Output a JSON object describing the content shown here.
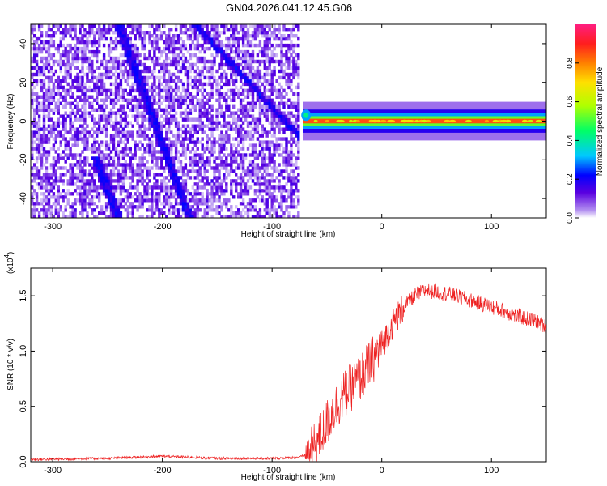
{
  "title": "GN04.2026.041.12.45.G06",
  "chart_data": [
    {
      "type": "heatmap",
      "name": "spectrogram",
      "xlabel": "Height of straight line (km)",
      "ylabel": "Frequency (Hz)",
      "xlim": [
        -320,
        150
      ],
      "ylim": [
        -50,
        50
      ],
      "xticks": [
        -300,
        -200,
        -100,
        0,
        100
      ],
      "yticks": [
        -40,
        -20,
        0,
        20,
        40
      ],
      "colorbar": {
        "label": "Normalized spectral amplitude",
        "range": [
          0.0,
          1.0
        ],
        "ticks": [
          "0.0",
          "0.2",
          "0.4",
          "0.6",
          "0.8"
        ],
        "tick_values": [
          0.0,
          0.2,
          0.4,
          0.6,
          0.8
        ],
        "colormap": [
          "#ffffff",
          "#b28ff0",
          "#5a00e0",
          "#0000ff",
          "#00c8ff",
          "#00ff66",
          "#b0ff00",
          "#ffe000",
          "#ff8000",
          "#ff1e1e",
          "#ff1e80"
        ]
      },
      "features": {
        "noise_region_end_km": -75,
        "carrier_freq_hz": 0,
        "carrier_start_km": -72,
        "diagonal_tracks": [
          {
            "start": [
              -240,
              50
            ],
            "end": [
              -175,
              -50
            ]
          },
          {
            "start": [
              -170,
              50
            ],
            "end": [
              -75,
              -8
            ]
          },
          {
            "start": [
              -260,
              -20
            ],
            "end": [
              -240,
              -50
            ]
          }
        ]
      }
    },
    {
      "type": "line",
      "name": "snr",
      "xlabel": "Height of straight line (km)",
      "ylabel": "SNR (10 * v/v)",
      "y_multiplier": "(x10",
      "y_multiplier_exp": "4",
      "multiplier_close": ")",
      "xlim": [
        -320,
        150
      ],
      "ylim": [
        0.0,
        1.75
      ],
      "xticks": [
        -300,
        -200,
        -100,
        0,
        100
      ],
      "yticks": [
        0.0,
        0.5,
        1.0,
        1.5
      ],
      "ytick_labels": [
        "0.0",
        "0.5",
        "1.0",
        "1.5"
      ],
      "color": "#ee2222",
      "series": [
        {
          "name": "SNR",
          "x": [
            -320,
            -250,
            -200,
            -150,
            -100,
            -75,
            -65,
            -55,
            -45,
            -35,
            -20,
            -10,
            0,
            10,
            20,
            30,
            40,
            60,
            80,
            100,
            120,
            140,
            150
          ],
          "y": [
            0.02,
            0.03,
            0.05,
            0.03,
            0.03,
            0.04,
            0.08,
            0.25,
            0.45,
            0.6,
            0.75,
            0.9,
            1.05,
            1.25,
            1.4,
            1.5,
            1.55,
            1.52,
            1.46,
            1.4,
            1.33,
            1.27,
            1.22
          ]
        }
      ]
    }
  ]
}
